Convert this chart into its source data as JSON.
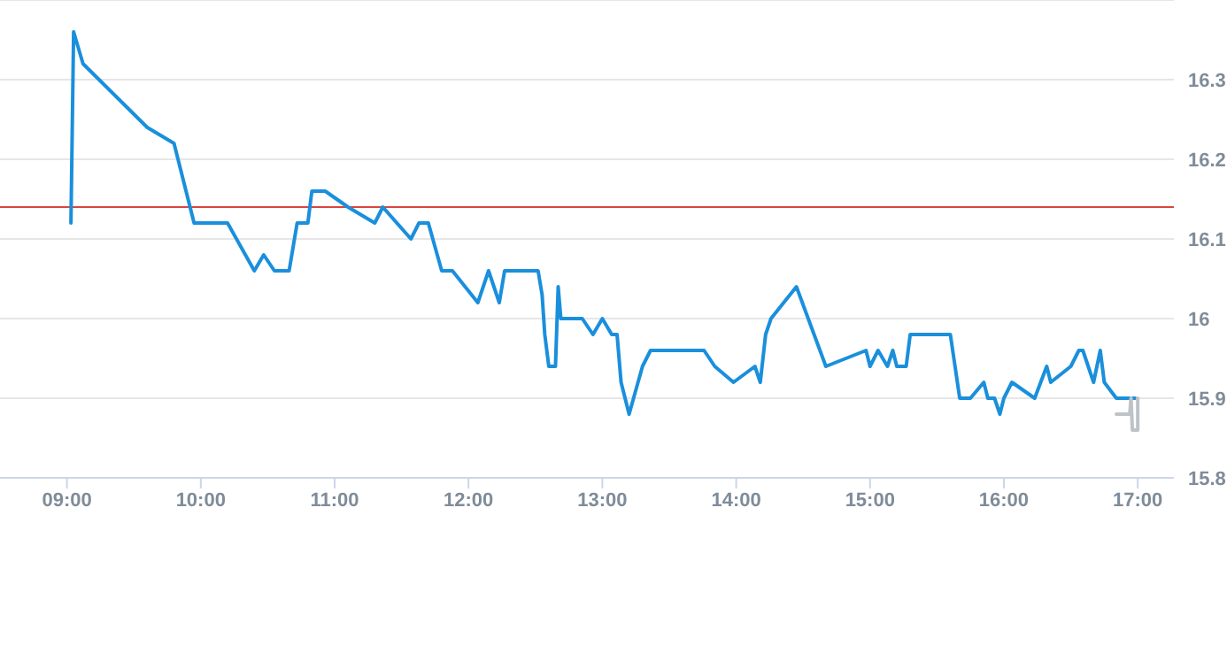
{
  "chart_data": {
    "type": "line",
    "xlim": [
      8.5,
      17.27
    ],
    "xticks": [
      {
        "value": 9,
        "label": "09:00"
      },
      {
        "value": 10,
        "label": "10:00"
      },
      {
        "value": 11,
        "label": "11:00"
      },
      {
        "value": 12,
        "label": "12:00"
      },
      {
        "value": 13,
        "label": "13:00"
      },
      {
        "value": 14,
        "label": "14:00"
      },
      {
        "value": 15,
        "label": "15:00"
      },
      {
        "value": 16,
        "label": "16:00"
      },
      {
        "value": 17,
        "label": "17:00"
      }
    ],
    "ylim": [
      15.8,
      16.4
    ],
    "yticks": [
      15.8,
      15.9,
      16,
      16.1,
      16.2,
      16.3
    ],
    "grid": "y",
    "marker": "none",
    "line_style": "solid",
    "ref_lines": [
      {
        "axis": "y",
        "value": 16.14,
        "color": "#d9463e"
      }
    ],
    "series": [
      {
        "color": "#1a8fdc",
        "x": [
          9.03,
          9.05,
          9.12,
          9.6,
          9.8,
          9.95,
          10.2,
          10.4,
          10.47,
          10.55,
          10.66,
          10.72,
          10.8,
          10.83,
          10.93,
          11.1,
          11.3,
          11.36,
          11.57,
          11.63,
          11.7,
          11.8,
          11.88,
          12.07,
          12.15,
          12.23,
          12.27,
          12.52,
          12.55,
          12.57,
          12.6,
          12.65,
          12.67,
          12.69,
          12.85,
          12.93,
          13.0,
          13.07,
          13.11,
          13.14,
          13.2,
          13.3,
          13.36,
          13.76,
          13.84,
          13.98,
          14.14,
          14.18,
          14.22,
          14.26,
          14.45,
          14.67,
          14.97,
          15.0,
          15.06,
          15.13,
          15.17,
          15.2,
          15.27,
          15.3,
          15.6,
          15.67,
          15.75,
          15.85,
          15.88,
          15.93,
          15.97,
          16.0,
          16.06,
          16.23,
          16.32,
          16.35,
          16.5,
          16.56,
          16.59,
          16.67,
          16.72,
          16.75,
          16.84,
          16.98
        ],
        "values": [
          16.12,
          16.36,
          16.32,
          16.24,
          16.22,
          16.12,
          16.12,
          16.06,
          16.08,
          16.06,
          16.06,
          16.12,
          16.12,
          16.16,
          16.16,
          16.14,
          16.12,
          16.14,
          16.1,
          16.12,
          16.12,
          16.06,
          16.06,
          16.02,
          16.06,
          16.02,
          16.06,
          16.06,
          16.03,
          15.98,
          15.94,
          15.94,
          16.04,
          16.0,
          16.0,
          15.98,
          16.0,
          15.98,
          15.98,
          15.92,
          15.88,
          15.94,
          15.96,
          15.96,
          15.94,
          15.92,
          15.94,
          15.92,
          15.98,
          16.0,
          16.04,
          15.94,
          15.96,
          15.94,
          15.96,
          15.94,
          15.96,
          15.94,
          15.94,
          15.98,
          15.98,
          15.9,
          15.9,
          15.92,
          15.9,
          15.9,
          15.88,
          15.9,
          15.92,
          15.9,
          15.94,
          15.92,
          15.94,
          15.96,
          15.96,
          15.92,
          15.96,
          15.92,
          15.9,
          15.9
        ]
      },
      {
        "color": "#bdc3c7",
        "x": [
          16.84,
          16.94,
          16.95,
          16.96,
          17.0,
          17.0
        ],
        "values": [
          15.88,
          15.88,
          15.9,
          15.86,
          15.86,
          15.9
        ]
      }
    ]
  }
}
